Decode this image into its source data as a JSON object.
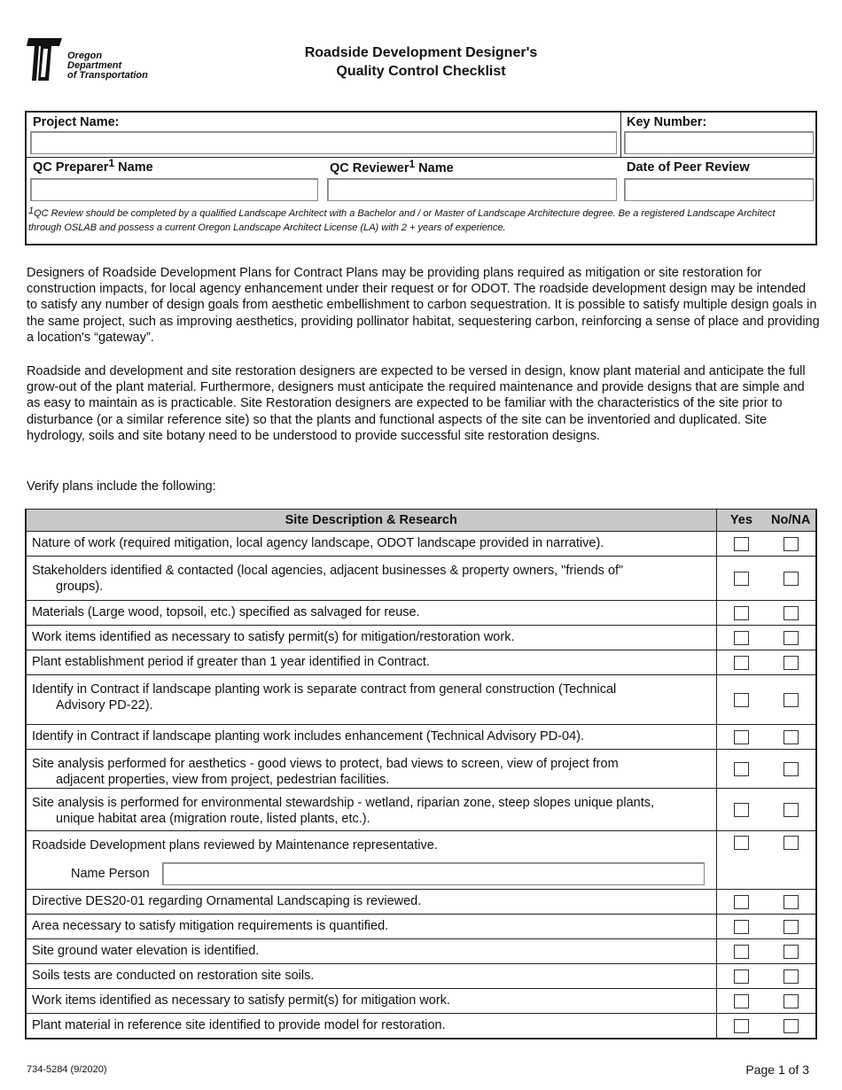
{
  "logo": {
    "text": [
      "Oregon",
      "Department",
      "of Transportation"
    ]
  },
  "title": [
    "Roadside Development Designer's",
    "Quality Control Checklist"
  ],
  "header": {
    "project_name": "Project Name:",
    "key_number": "Key Number:",
    "qc_preparer": "QC Preparer",
    "qc_reviewer": "QC Reviewer",
    "sup": "1",
    "name_suffix": " Name",
    "date_review": "Date of Peer Review",
    "fields": {
      "project_name": "",
      "key_number": "",
      "qc_preparer": "",
      "qc_reviewer": "",
      "date_review": ""
    },
    "footnote": "QC Review should be completed by a qualified Landscape Architect with a Bachelor and / or Master of Landscape Architecture degree. Be a registered Landscape Architect through OSLAB and possess a current Oregon Landscape Architect License (LA) with 2 + years of experience."
  },
  "paragraphs": [
    "Designers of Roadside Development Plans for Contract Plans may be providing plans required as mitigation or site restoration for construction impacts, for local agency enhancement under their request or for ODOT.  The roadside development design may be intended to satisfy any number of design goals from aesthetic embellishment to carbon sequestration.  It is possible to satisfy multiple design goals in the same project, such as improving aesthetics, providing pollinator habitat, sequestering carbon, reinforcing a sense of place and providing a location's “gateway”.",
    "Roadside and development and site restoration designers are expected to be versed in design, know plant material and anticipate the full grow-out of the plant material.  Furthermore, designers must anticipate the required maintenance and provide designs that are simple and as easy to maintain as is practicable.   Site Restoration designers are expected to be familiar with the characteristics of the site prior to disturbance (or a similar reference site) so that the plants and functional aspects of the site can be inventoried and duplicated.   Site hydrology, soils and site botany need to be understood to provide successful site restoration designs.",
    "Verify plans include the following:"
  ],
  "table": {
    "header": "Site Description & Research",
    "yes": "Yes",
    "no": "No/NA",
    "rows": [
      {
        "a": "Nature of work (required mitigation, local agency landscape, ODOT landscape provided in narrative).",
        "b": "",
        "yes": false,
        "no": false
      },
      {
        "a": "Stakeholders identified & contacted (local agencies, adjacent businesses & property owners, \"friends of\"",
        "b": "groups).",
        "yes": false,
        "no": false
      },
      {
        "a": "Materials (Large wood, topsoil, etc.) specified as salvaged for reuse.",
        "b": "",
        "yes": false,
        "no": false
      },
      {
        "a": "Work items identified as necessary to satisfy permit(s) for mitigation/restoration work.",
        "b": "",
        "yes": false,
        "no": false
      },
      {
        "a": "Plant establishment period if greater than 1 year identified in Contract.",
        "b": "",
        "yes": false,
        "no": false
      },
      {
        "a": "Identify in Contract if landscape planting work is separate contract from general construction (Technical",
        "b": "Advisory PD-22).",
        "yes": false,
        "no": false
      },
      {
        "a": "Identify in Contract if landscape planting work includes enhancement (Technical Advisory PD-04).",
        "b": "",
        "yes": false,
        "no": false
      },
      {
        "a": "Site analysis performed for aesthetics - good views to protect, bad views to screen, view of project from",
        "b": "adjacent properties, view from project, pedestrian facilities.",
        "yes": false,
        "no": false
      },
      {
        "a": "Site analysis is performed for environmental stewardship - wetland, riparian zone, steep slopes unique plants,",
        "b": "unique habitat area (migration route, listed plants, etc.).",
        "yes": false,
        "no": false
      },
      {
        "a": "Roadside Development plans reviewed by Maintenance representative.",
        "b": "",
        "name_label": "Name Person",
        "name_value": "",
        "yes": false,
        "no": false
      },
      {
        "a": "Directive DES20-01 regarding Ornamental Landscaping is reviewed.",
        "b": "",
        "yes": false,
        "no": false
      },
      {
        "a": "Area necessary to satisfy mitigation requirements is quantified.",
        "b": "",
        "yes": false,
        "no": false
      },
      {
        "a": "Site ground water elevation is identified.",
        "b": "",
        "yes": false,
        "no": false
      },
      {
        "a": "Soils tests are conducted on restoration site soils.",
        "b": "",
        "yes": false,
        "no": false
      },
      {
        "a": "Work items identified as necessary to satisfy permit(s) for mitigation work.",
        "b": "",
        "yes": false,
        "no": false
      },
      {
        "a": "Plant material in reference site identified to provide model for restoration.",
        "b": "",
        "yes": false,
        "no": false
      }
    ]
  },
  "footer": {
    "form_number": "734-5284 (9/2020)",
    "page": "Page 1 of 3"
  }
}
